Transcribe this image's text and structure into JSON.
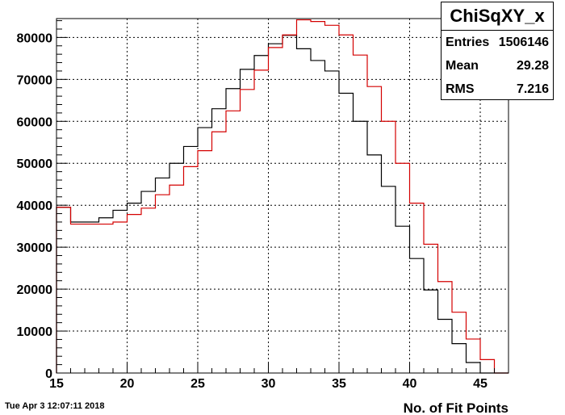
{
  "chart_data": {
    "type": "histogram",
    "xlabel": "No. of Fit Points",
    "ylabel": "",
    "xlim": [
      15,
      47
    ],
    "ylim": [
      0,
      84500
    ],
    "grid": true,
    "x_ticks": [
      15,
      20,
      25,
      30,
      35,
      40,
      45
    ],
    "y_ticks": [
      0,
      10000,
      20000,
      30000,
      40000,
      50000,
      60000,
      70000,
      80000
    ],
    "bin_edges": [
      15,
      16,
      17,
      18,
      19,
      20,
      21,
      22,
      23,
      24,
      25,
      26,
      27,
      28,
      29,
      30,
      31,
      32,
      33,
      34,
      35,
      36,
      37,
      38,
      39,
      40,
      41,
      42,
      43,
      44,
      45,
      46,
      47
    ],
    "series": [
      {
        "color": "#000000",
        "values": [
          39500,
          36000,
          36000,
          37000,
          38800,
          40500,
          43300,
          46500,
          50000,
          54000,
          58500,
          63000,
          67800,
          72400,
          75700,
          78500,
          80500,
          77300,
          74500,
          72000,
          66700,
          60000,
          52000,
          44500,
          35000,
          27300,
          19800,
          12800,
          7000,
          2500,
          0,
          0
        ]
      },
      {
        "color": "#d40000",
        "values": [
          39500,
          35500,
          35500,
          35500,
          36000,
          37800,
          39300,
          42500,
          44800,
          49200,
          53000,
          57500,
          62500,
          67600,
          72200,
          77600,
          80600,
          84200,
          83800,
          82900,
          80600,
          75800,
          68300,
          60000,
          50000,
          40500,
          30700,
          21800,
          14500,
          8100,
          3200,
          0
        ]
      }
    ]
  },
  "stats": {
    "title": "ChiSqXY_x",
    "rows": [
      {
        "key": "Entries",
        "value": "1506146"
      },
      {
        "key": "Mean",
        "value": "29.28"
      },
      {
        "key": "RMS",
        "value": "7.216"
      }
    ]
  },
  "footer": {
    "timestamp": "Tue Apr  3 12:07:11 2018"
  }
}
